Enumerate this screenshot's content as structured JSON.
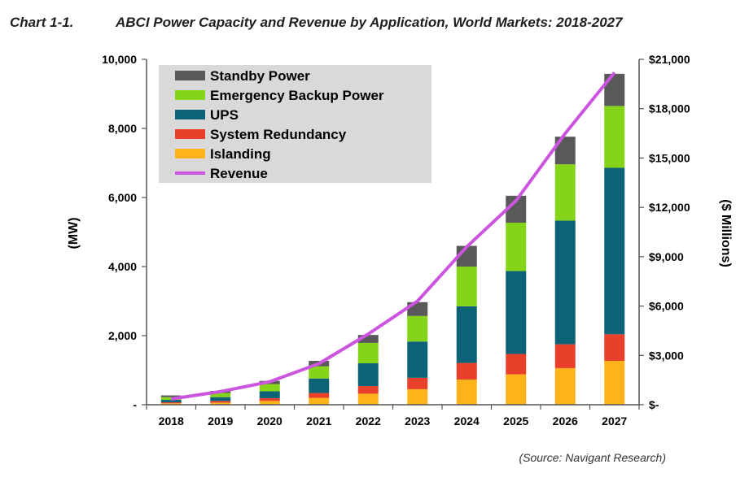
{
  "header": {
    "chart_number": "Chart 1-1.",
    "title": "ABCI Power Capacity and Revenue by Application, World Markets: 2018-2027"
  },
  "source": "(Source: Navigant Research)",
  "chart_data": {
    "type": "bar",
    "stacked": true,
    "title": "ABCI Power Capacity and Revenue by Application, World Markets: 2018-2027",
    "categories": [
      "2018",
      "2019",
      "2020",
      "2021",
      "2022",
      "2023",
      "2024",
      "2025",
      "2026",
      "2027"
    ],
    "ylabel": "(MW)",
    "y2label": "($ Millions)",
    "ylim": [
      0,
      10000
    ],
    "y2lim": [
      0,
      21000
    ],
    "yticks": [
      0,
      2000,
      4000,
      6000,
      8000,
      10000
    ],
    "ytick_labels": [
      "-",
      "2,000",
      "4,000",
      "6,000",
      "8,000",
      "10,000"
    ],
    "y2ticks": [
      0,
      3000,
      6000,
      9000,
      12000,
      15000,
      18000,
      21000
    ],
    "y2tick_labels": [
      "$-",
      "$3,000",
      "$6,000",
      "$9,000",
      "$12,000",
      "$15,000",
      "$18,000",
      "$21,000"
    ],
    "legend_position": "top-left",
    "grid": false,
    "series": [
      {
        "name": "Islanding",
        "color": "#ffb31a",
        "axis": "left",
        "values": [
          40,
          60,
          110,
          200,
          320,
          450,
          730,
          880,
          1060,
          1270
        ]
      },
      {
        "name": "System Redundancy",
        "color": "#e8402a",
        "axis": "left",
        "values": [
          30,
          50,
          80,
          140,
          220,
          330,
          480,
          590,
          690,
          770
        ]
      },
      {
        "name": "UPS",
        "color": "#0c6377",
        "axis": "left",
        "values": [
          70,
          110,
          200,
          420,
          660,
          1050,
          1640,
          2400,
          3580,
          4820
        ]
      },
      {
        "name": "Emergency Backup Power",
        "color": "#86d41a",
        "axis": "left",
        "values": [
          80,
          120,
          210,
          350,
          590,
          740,
          1150,
          1400,
          1630,
          1790
        ]
      },
      {
        "name": "Standby Power",
        "color": "#595959",
        "axis": "left",
        "values": [
          50,
          60,
          90,
          160,
          230,
          400,
          600,
          780,
          800,
          930
        ]
      },
      {
        "name": "Revenue",
        "type": "line",
        "color": "#cc55e0",
        "axis": "right",
        "values": [
          350,
          800,
          1400,
          2500,
          4300,
          6300,
          9600,
          12400,
          16500,
          20200
        ]
      }
    ]
  }
}
